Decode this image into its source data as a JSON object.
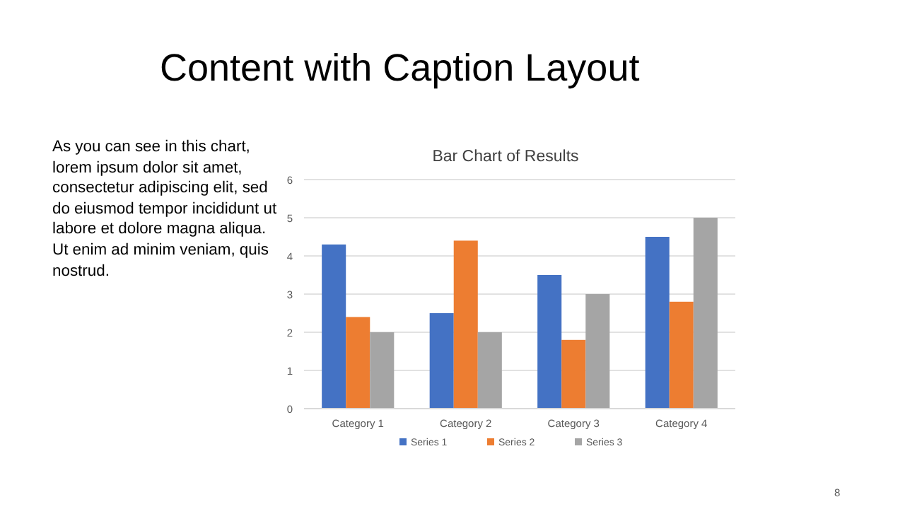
{
  "chart_data": {
    "type": "bar",
    "title": "Bar Chart of Results",
    "subtitle": "Content with Caption Layout",
    "categories": [
      "Category 1",
      "Category 2",
      "Category 3",
      "Category 4"
    ],
    "series": [
      {
        "name": "Series 1",
        "color": "#4472c4",
        "values": [
          4.3,
          2.5,
          3.5,
          4.5
        ]
      },
      {
        "name": "Series 2",
        "color": "#ed7d31",
        "values": [
          2.4,
          4.4,
          1.8,
          2.8
        ]
      },
      {
        "name": "Series 3",
        "color": "#a5a5a5",
        "values": [
          2,
          2,
          3,
          5
        ]
      }
    ],
    "ylim": [
      0,
      6
    ],
    "yticks": [
      0,
      1,
      2,
      3,
      4,
      5,
      6
    ],
    "grid": "y",
    "legend": "bottom",
    "annotations": [
      "As you can see in this chart, lorem ipsum dolor sit amet, consectetur adipiscing elit, sed do eiusmod tempor incididunt ut labore et dolore magna aliqua. Ut enim ad minim veniam, quis nostrud.",
      "8"
    ]
  }
}
